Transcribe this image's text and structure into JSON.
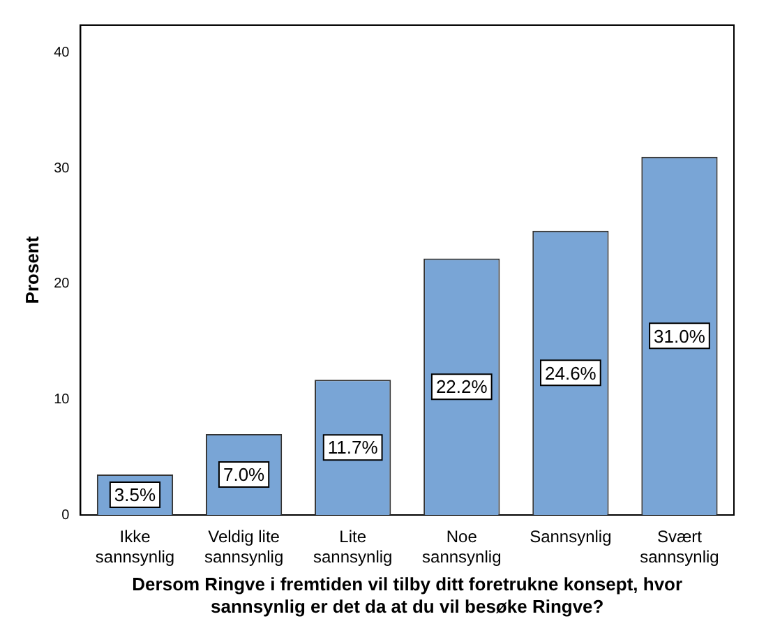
{
  "chart_data": {
    "type": "bar",
    "xlabel": "Dersom Ringve i fremtiden vil tilby ditt foretrukne konsept, hvor sannsynlig er det da at du vil besøke Ringve?",
    "ylabel": "Prosent",
    "categories": [
      "Ikke sannsynlig",
      "Veldig lite sannsynlig",
      "Lite sannsynlig",
      "Noe sannsynlig",
      "Sannsynlig",
      "Svært sannsynlig"
    ],
    "values": [
      3.5,
      7.0,
      11.7,
      22.2,
      24.6,
      31.0
    ],
    "value_labels": [
      "3.5%",
      "7.0%",
      "11.7%",
      "22.2%",
      "24.6%",
      "31.0%"
    ],
    "color": "#79a5d6",
    "ylim": [
      0,
      42.4
    ],
    "yticks": [
      0,
      10,
      20,
      30,
      40
    ],
    "grid": false,
    "legend": false
  }
}
